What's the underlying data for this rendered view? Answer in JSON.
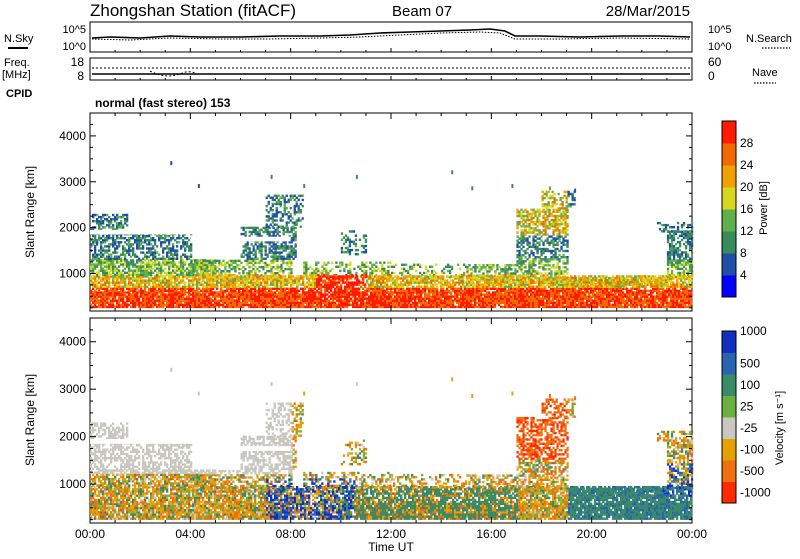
{
  "header": {
    "station": "Zhongshan Station (fitACF)",
    "beam": "Beam 07",
    "date": "28/Mar/2015"
  },
  "status_panel": {
    "nsky_label": "N.Sky",
    "nsearch_label": "N.Search",
    "left_ticks": [
      "10^5",
      "10^0"
    ],
    "right_ticks": [
      "10^5",
      "10^0"
    ],
    "freq_label": "Freq.",
    "freq_unit": "[MHz]",
    "freq_ticks": [
      "18",
      "8"
    ],
    "nave_ticks": [
      "60",
      "0"
    ],
    "nave_label": "Nave",
    "cpid_label": "CPID",
    "cpid_value": "normal (fast stereo) 153"
  },
  "colors": {
    "power": [
      "#0000ff",
      "#1f4fa8",
      "#3b8a5c",
      "#5fb04a",
      "#d6d81e",
      "#f0a000",
      "#f06a00",
      "#ff1a00"
    ],
    "velocity": [
      "#1030c0",
      "#2a64b0",
      "#3a8a68",
      "#6ab040",
      "#c8c8c0",
      "#e6a000",
      "#f07010",
      "#ff2a00"
    ]
  },
  "chart_data": [
    {
      "type": "heatmap",
      "ylabel": "Slant Range [km]",
      "ylim": [
        180,
        4500
      ],
      "yticks": [
        1000,
        2000,
        3000,
        4000
      ],
      "colorbar": {
        "label": "Power [dB]",
        "ticks": [
          "4",
          "8",
          "12",
          "16",
          "20",
          "24",
          "28"
        ],
        "range": [
          0,
          32
        ]
      }
    },
    {
      "type": "heatmap",
      "ylabel": "Slant Range [km]",
      "xlabel": "Time UT",
      "ylim": [
        180,
        4500
      ],
      "yticks": [
        1000,
        2000,
        3000,
        4000
      ],
      "xticks": [
        "00:00",
        "04:00",
        "08:00",
        "12:00",
        "16:00",
        "20:00",
        "00:00"
      ],
      "xrange_hours": [
        0,
        24
      ],
      "colorbar": {
        "label": "Velocity [m s⁻¹]",
        "ticks": [
          "1000",
          "500",
          "100",
          "25",
          "-25",
          "-100",
          "-500",
          "-1000"
        ]
      }
    }
  ]
}
